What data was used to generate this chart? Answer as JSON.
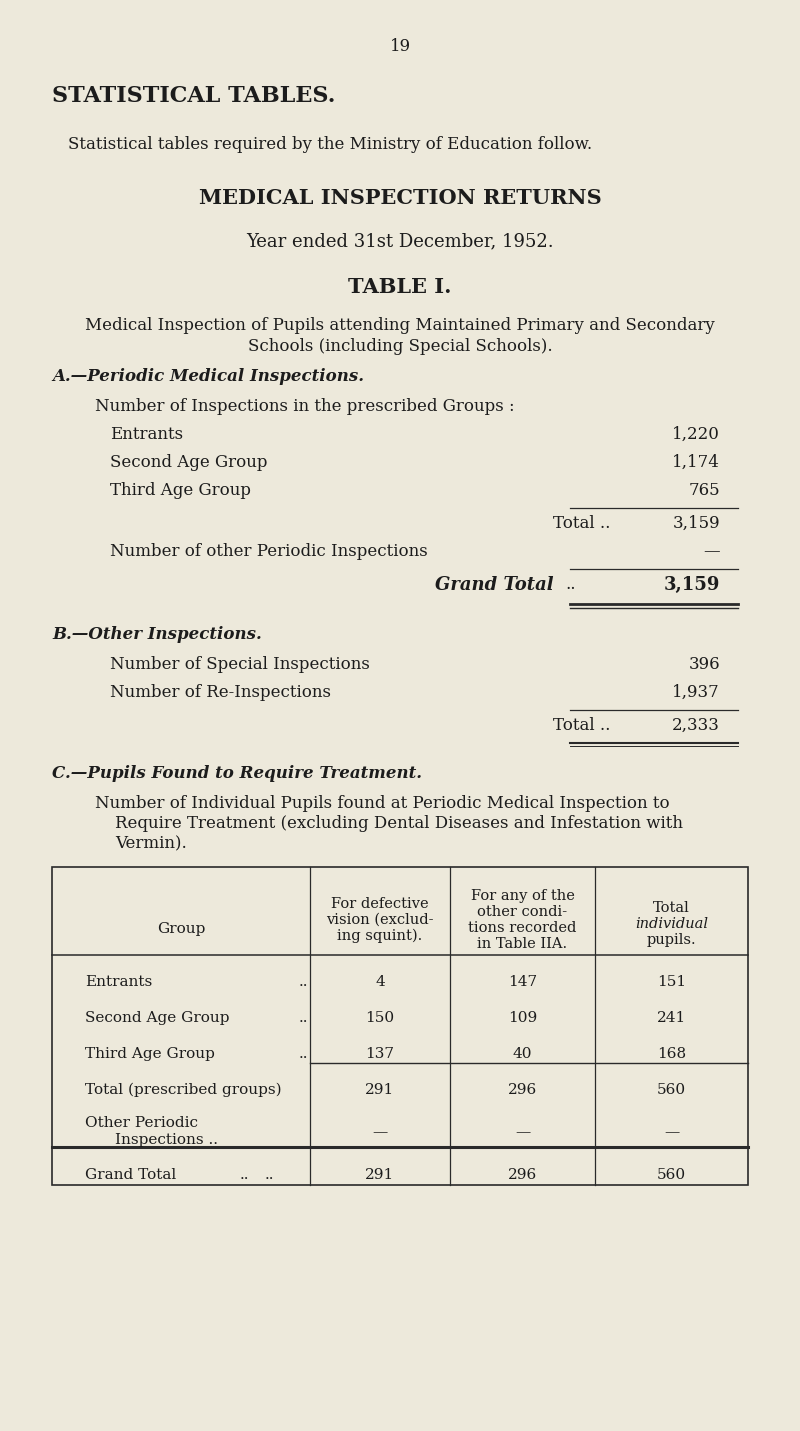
{
  "page_num": "19",
  "bg_color": "#ede9db",
  "title_main": "STATISTICAL TABLES.",
  "subtitle1": "Statistical tables required by the Ministry of Education follow.",
  "subtitle2": "MEDICAL INSPECTION RETURNS",
  "subtitle3": "Year ended 31st December, 1952.",
  "table_title": "TABLE I.",
  "section_a_title": "A.—Periodic Medical Inspections.",
  "section_a_sub": "Number of Inspections in the prescribed Groups :",
  "section_a_rows": [
    [
      "Entrants",
      "1,220"
    ],
    [
      "Second Age Group",
      "1,174"
    ],
    [
      "Third Age Group",
      "765"
    ]
  ],
  "section_a_total_label": "Total ..",
  "section_a_total_val": "3,159",
  "section_a_other_label": "Number of other Periodic Inspections",
  "section_a_other_val": "—",
  "section_a_grand_label": "Grand Total",
  "section_a_grand_val": "3,159",
  "section_b_title": "B.—Other Inspections.",
  "section_b_rows": [
    [
      "Number of Special Inspections",
      "396"
    ],
    [
      "Number of Re-Inspections",
      "1,937"
    ]
  ],
  "section_b_total_label": "Total ..",
  "section_b_total_val": "2,333",
  "section_c_title": "C.—Pupils Found to Require Treatment.",
  "section_c_lines": [
    "Number of Individual Pupils found at Periodic Medical Inspection to",
    "Require Treatment (excluding Dental Diseases and Infestation with",
    "Vermin)."
  ],
  "tbl_col0_header": "Group",
  "tbl_col1_header": [
    "For defective",
    "vision (exclud-",
    "ing squint)."
  ],
  "tbl_col2_header": [
    "For any of the",
    "other condi-",
    "tions recorded",
    "in Table IIA."
  ],
  "tbl_col3_header": [
    "Total",
    "individual",
    "pupils."
  ],
  "tbl_rows": [
    [
      "Entrants",
      "4",
      "147",
      "151"
    ],
    [
      "Second Age Group",
      "150",
      "109",
      "241"
    ],
    [
      "Third Age Group",
      "137",
      "40",
      "168"
    ],
    [
      "Total (prescribed groups)",
      "291",
      "296",
      "560"
    ],
    [
      "Other Periodic\nInspections ..",
      "—",
      "—",
      "—"
    ],
    [
      "Grand Total",
      "291",
      "296",
      "560"
    ]
  ],
  "text_color": "#1c1c1c",
  "line_color": "#2a2a2a"
}
